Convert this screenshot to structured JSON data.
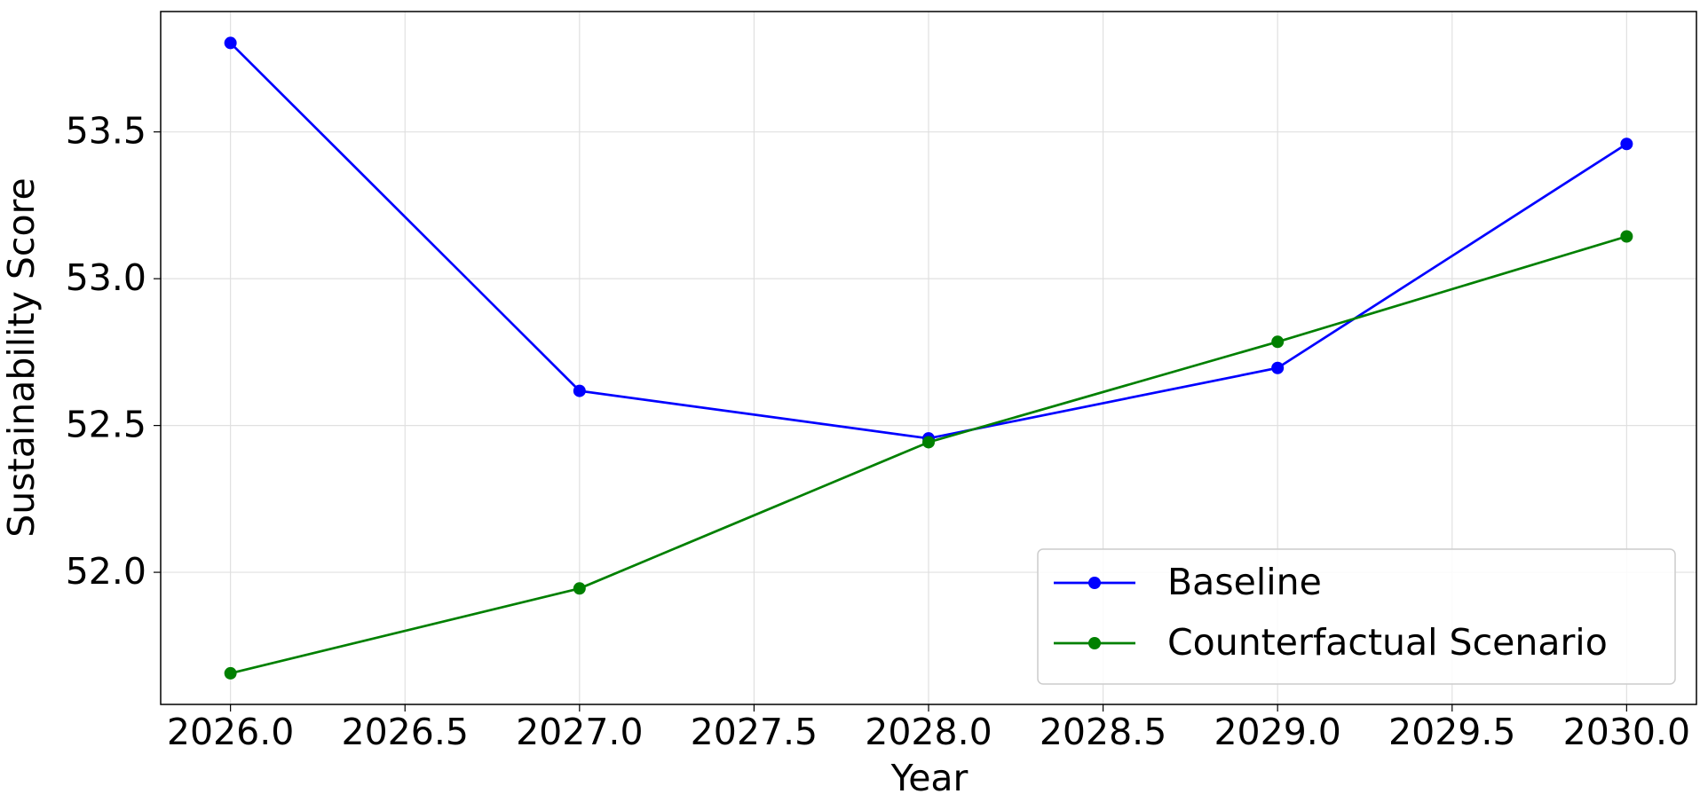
{
  "chart_data": {
    "type": "line",
    "xlabel": "Year",
    "ylabel": "Sustainability Score",
    "x": [
      2026,
      2027,
      2028,
      2029,
      2030
    ],
    "series": [
      {
        "name": "Baseline",
        "color": "#0000ff",
        "values": [
          53.803,
          52.618,
          52.456,
          52.696,
          53.459
        ]
      },
      {
        "name": "Counterfactual Scenario",
        "color": "#008000",
        "values": [
          51.656,
          51.945,
          52.443,
          52.785,
          53.144
        ]
      }
    ],
    "xlim": [
      2025.8,
      2030.2
    ],
    "xticks": [
      {
        "value": 2026,
        "label": "2026.0"
      },
      {
        "value": 2026.5,
        "label": "2026.5"
      },
      {
        "value": 2027,
        "label": "2027.0"
      },
      {
        "value": 2027.5,
        "label": "2027.5"
      },
      {
        "value": 2028,
        "label": "2028.0"
      },
      {
        "value": 2028.5,
        "label": "2028.5"
      },
      {
        "value": 2029,
        "label": "2029.0"
      },
      {
        "value": 2029.5,
        "label": "2029.5"
      },
      {
        "value": 2030,
        "label": "2030.0"
      }
    ],
    "ylim": [
      51.55,
      53.91
    ],
    "yticks": [
      {
        "value": 52,
        "label": "52.0"
      },
      52.5,
      {
        "value": 53,
        "label": "53.0"
      },
      53.5
    ],
    "grid": true,
    "legend": "lower right"
  }
}
